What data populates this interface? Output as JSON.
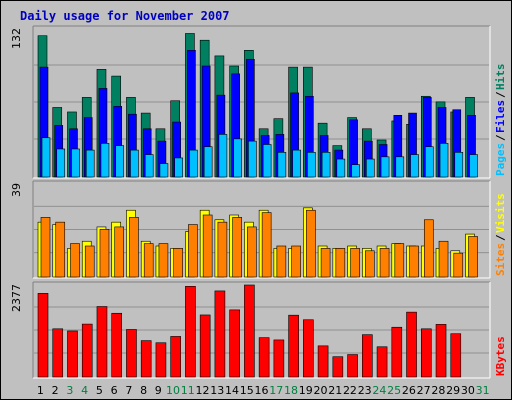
{
  "title": "Daily usage for November 2007",
  "colors": {
    "background": "#C0C0C0",
    "title": "#0000C0",
    "hits": "#008060",
    "files": "#0000FF",
    "pages": "#00C0FF",
    "visits": "#FFFF00",
    "sites": "#FF8000",
    "kbytes": "#FF0000",
    "weekend_day": "#008040",
    "weekday": "#000000"
  },
  "chart_data": [
    {
      "type": "bar",
      "name_hint": "hits-files-pages",
      "ymax_label": "132",
      "ymax": 132,
      "right_labels": [
        "Pages",
        "Files",
        "Hits"
      ],
      "categories": [
        "1",
        "2",
        "3",
        "4",
        "5",
        "6",
        "7",
        "8",
        "9",
        "10",
        "11",
        "12",
        "13",
        "14",
        "15",
        "16",
        "17",
        "18",
        "19",
        "20",
        "21",
        "22",
        "23",
        "24",
        "25",
        "26",
        "27",
        "28",
        "29",
        "30",
        "31"
      ],
      "weekend_days": [
        "3",
        "4",
        "10",
        "11",
        "17",
        "18",
        "24",
        "25",
        "31"
      ],
      "series": [
        {
          "name": "Hits",
          "values": [
            126,
            62,
            58,
            71,
            96,
            90,
            71,
            57,
            43,
            68,
            128,
            122,
            108,
            99,
            113,
            43,
            52,
            98,
            98,
            48,
            28,
            53,
            43,
            33,
            50,
            47,
            72,
            67,
            58,
            71,
            0
          ]
        },
        {
          "name": "Files",
          "values": [
            98,
            46,
            43,
            53,
            79,
            63,
            56,
            43,
            32,
            49,
            113,
            99,
            73,
            92,
            105,
            37,
            38,
            75,
            72,
            37,
            24,
            51,
            32,
            29,
            55,
            57,
            71,
            62,
            60,
            55,
            0
          ]
        },
        {
          "name": "Pages",
          "values": [
            35,
            25,
            25,
            24,
            30,
            28,
            24,
            20,
            12,
            17,
            24,
            27,
            38,
            34,
            32,
            29,
            22,
            24,
            22,
            22,
            16,
            11,
            16,
            18,
            18,
            20,
            27,
            30,
            22,
            20,
            0
          ]
        }
      ]
    },
    {
      "type": "bar",
      "name_hint": "visits-sites",
      "ymax_label": "39",
      "ymax": 39,
      "right_labels": [
        "Sites",
        "Visits"
      ],
      "categories": [
        "1",
        "2",
        "3",
        "4",
        "5",
        "6",
        "7",
        "8",
        "9",
        "10",
        "11",
        "12",
        "13",
        "14",
        "15",
        "16",
        "17",
        "18",
        "19",
        "20",
        "21",
        "22",
        "23",
        "24",
        "25",
        "26",
        "27",
        "28",
        "29",
        "30",
        "31"
      ],
      "series": [
        {
          "name": "Visits",
          "values": [
            23,
            22,
            12,
            15,
            21,
            23,
            28,
            15,
            13,
            12,
            19,
            28,
            24,
            26,
            23,
            28,
            12,
            12,
            29,
            13,
            12,
            13,
            12,
            13,
            14,
            13,
            13,
            12,
            11,
            18,
            0
          ]
        },
        {
          "name": "Sites",
          "values": [
            25,
            23,
            14,
            13,
            20,
            21,
            25,
            14,
            14,
            12,
            22,
            26,
            23,
            25,
            21,
            27,
            13,
            13,
            28,
            12,
            12,
            12,
            11,
            12,
            14,
            13,
            24,
            15,
            10,
            17,
            0
          ]
        }
      ]
    },
    {
      "type": "bar",
      "name_hint": "kbytes",
      "ymax_label": "2377",
      "ymax": 2377,
      "right_labels": [
        "KBytes"
      ],
      "categories": [
        "1",
        "2",
        "3",
        "4",
        "5",
        "6",
        "7",
        "8",
        "9",
        "10",
        "11",
        "12",
        "13",
        "14",
        "15",
        "16",
        "17",
        "18",
        "19",
        "20",
        "21",
        "22",
        "23",
        "24",
        "25",
        "26",
        "27",
        "28",
        "29",
        "30",
        "31"
      ],
      "series": [
        {
          "name": "KBytes",
          "values": [
            2161,
            1245,
            1190,
            1367,
            1821,
            1647,
            1228,
            940,
            885,
            1048,
            2343,
            1603,
            2224,
            1734,
            2377,
            1017,
            958,
            1597,
            1479,
            805,
            524,
            580,
            1094,
            781,
            1286,
            1676,
            1245,
            1360,
            1118,
            0,
            0
          ]
        }
      ]
    }
  ]
}
